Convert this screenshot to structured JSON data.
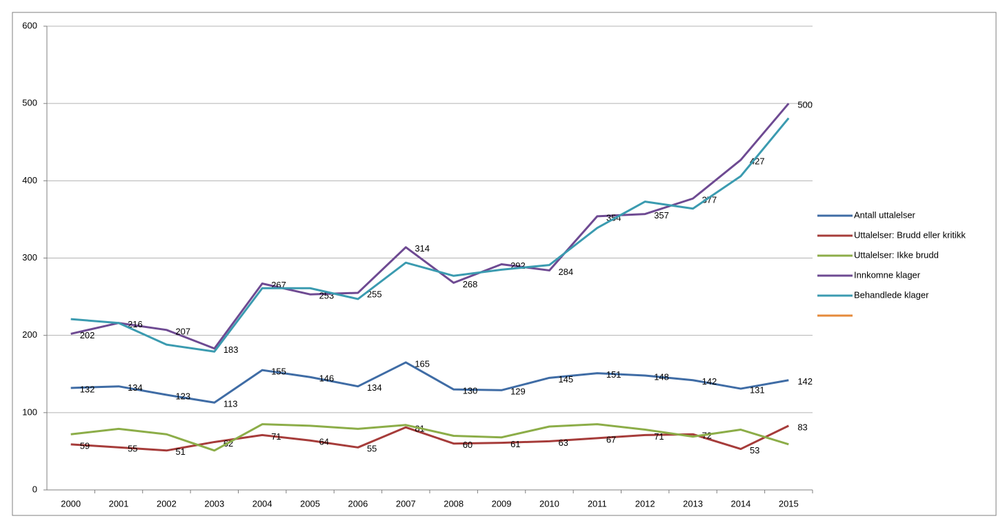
{
  "chart_data": {
    "type": "line",
    "categories": [
      "2000",
      "2001",
      "2002",
      "2003",
      "2004",
      "2005",
      "2006",
      "2007",
      "2008",
      "2009",
      "2010",
      "2011",
      "2012",
      "2013",
      "2014",
      "2015"
    ],
    "ylim": [
      0,
      600
    ],
    "yticks": [
      0,
      100,
      200,
      300,
      400,
      500,
      600
    ],
    "grid": true,
    "legend": "right",
    "series": [
      {
        "name": "Antall uttalelser",
        "color": "#3f6ca5",
        "labels": true,
        "values": [
          132,
          134,
          123,
          113,
          155,
          146,
          134,
          165,
          130,
          129,
          145,
          151,
          148,
          142,
          131,
          142
        ]
      },
      {
        "name": "Uttalelser: Brudd eller kritikk",
        "color": "#a63c3a",
        "labels": true,
        "values": [
          59,
          55,
          51,
          62,
          71,
          64,
          55,
          81,
          60,
          61,
          63,
          67,
          71,
          72,
          53,
          83
        ]
      },
      {
        "name": "Uttalelser: Ikke brudd",
        "color": "#8cad48",
        "labels": false,
        "values": [
          72,
          79,
          72,
          51,
          85,
          83,
          79,
          84,
          70,
          68,
          82,
          85,
          78,
          69,
          78,
          59
        ]
      },
      {
        "name": "Innkomne klager",
        "color": "#6e4a92",
        "labels": true,
        "values": [
          202,
          216,
          207,
          183,
          267,
          253,
          255,
          314,
          268,
          292,
          284,
          354,
          357,
          377,
          427,
          500
        ]
      },
      {
        "name": "Behandlede klager",
        "color": "#3b9bb0",
        "labels": false,
        "values": [
          221,
          216,
          188,
          179,
          261,
          261,
          247,
          294,
          277,
          285,
          291,
          339,
          373,
          364,
          406,
          481
        ]
      }
    ]
  }
}
